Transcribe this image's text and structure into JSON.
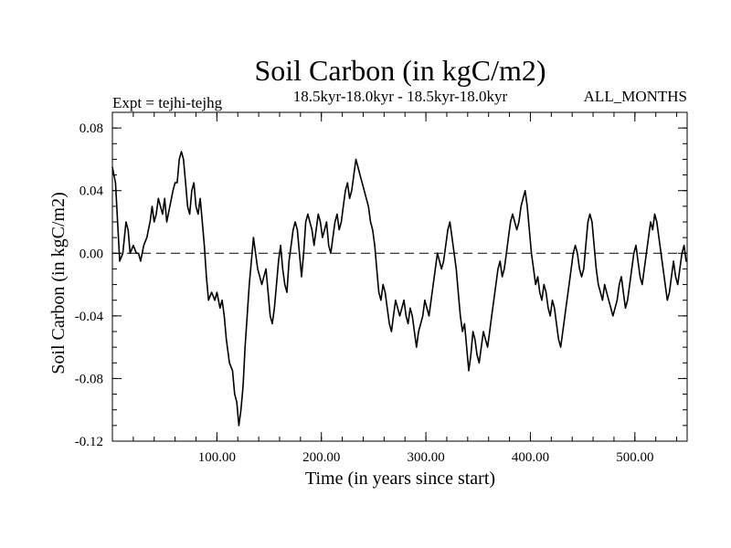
{
  "chart_data": {
    "type": "line",
    "title": "Soil Carbon (in kgC/m2)",
    "subtitle": "18.5kyr-18.0kyr - 18.5kyr-18.0kyr",
    "left_note": "Expt = tejhi-tejhg",
    "right_note": "ALL_MONTHS",
    "xlabel": "Time (in years since start)",
    "ylabel": "Soil Carbon (in kgC/m2)",
    "xlim": [
      0,
      550
    ],
    "ylim": [
      -0.12,
      0.09
    ],
    "xticks": [
      100,
      200,
      300,
      400,
      500
    ],
    "xtick_labels": [
      "100.00",
      "200.00",
      "300.00",
      "400.00",
      "500.00"
    ],
    "yticks": [
      -0.12,
      -0.08,
      -0.04,
      0.0,
      0.04,
      0.08
    ],
    "ytick_labels": [
      "-0.12",
      "-0.08",
      "-0.04",
      "0.00",
      "0.04",
      "0.08"
    ],
    "zero_line": "dashed",
    "series": [
      {
        "color": "#000000",
        "points": [
          [
            0,
            0.055
          ],
          [
            3,
            0.045
          ],
          [
            5,
            0.02
          ],
          [
            7,
            -0.005
          ],
          [
            10,
            0.0
          ],
          [
            13,
            0.02
          ],
          [
            15,
            0.015
          ],
          [
            17,
            0.0
          ],
          [
            20,
            0.005
          ],
          [
            23,
            0.0
          ],
          [
            25,
            0.0
          ],
          [
            27,
            -0.005
          ],
          [
            30,
            0.005
          ],
          [
            33,
            0.01
          ],
          [
            36,
            0.02
          ],
          [
            38,
            0.03
          ],
          [
            40,
            0.02
          ],
          [
            42,
            0.025
          ],
          [
            44,
            0.035
          ],
          [
            46,
            0.03
          ],
          [
            48,
            0.025
          ],
          [
            50,
            0.035
          ],
          [
            52,
            0.02
          ],
          [
            55,
            0.03
          ],
          [
            58,
            0.04
          ],
          [
            60,
            0.045
          ],
          [
            62,
            0.045
          ],
          [
            64,
            0.06
          ],
          [
            66,
            0.065
          ],
          [
            68,
            0.06
          ],
          [
            70,
            0.045
          ],
          [
            72,
            0.03
          ],
          [
            74,
            0.025
          ],
          [
            76,
            0.04
          ],
          [
            78,
            0.045
          ],
          [
            80,
            0.03
          ],
          [
            82,
            0.025
          ],
          [
            84,
            0.035
          ],
          [
            86,
            0.02
          ],
          [
            88,
            0.005
          ],
          [
            90,
            -0.015
          ],
          [
            92,
            -0.03
          ],
          [
            95,
            -0.025
          ],
          [
            98,
            -0.03
          ],
          [
            100,
            -0.025
          ],
          [
            103,
            -0.035
          ],
          [
            105,
            -0.03
          ],
          [
            107,
            -0.04
          ],
          [
            109,
            -0.055
          ],
          [
            112,
            -0.07
          ],
          [
            115,
            -0.075
          ],
          [
            117,
            -0.09
          ],
          [
            119,
            -0.095
          ],
          [
            121,
            -0.11
          ],
          [
            123,
            -0.1
          ],
          [
            125,
            -0.085
          ],
          [
            127,
            -0.06
          ],
          [
            129,
            -0.04
          ],
          [
            131,
            -0.02
          ],
          [
            133,
            -0.005
          ],
          [
            135,
            0.01
          ],
          [
            137,
            0.0
          ],
          [
            139,
            -0.01
          ],
          [
            141,
            -0.015
          ],
          [
            143,
            -0.02
          ],
          [
            145,
            -0.015
          ],
          [
            147,
            -0.01
          ],
          [
            149,
            -0.025
          ],
          [
            151,
            -0.04
          ],
          [
            153,
            -0.045
          ],
          [
            155,
            -0.035
          ],
          [
            157,
            -0.02
          ],
          [
            159,
            -0.005
          ],
          [
            161,
            0.005
          ],
          [
            163,
            -0.01
          ],
          [
            165,
            -0.02
          ],
          [
            167,
            -0.025
          ],
          [
            169,
            -0.005
          ],
          [
            171,
            0.005
          ],
          [
            173,
            0.015
          ],
          [
            175,
            0.02
          ],
          [
            177,
            0.015
          ],
          [
            179,
            0.0
          ],
          [
            181,
            -0.015
          ],
          [
            183,
            0.0
          ],
          [
            185,
            0.02
          ],
          [
            187,
            0.025
          ],
          [
            189,
            0.02
          ],
          [
            191,
            0.015
          ],
          [
            193,
            0.005
          ],
          [
            195,
            0.015
          ],
          [
            197,
            0.025
          ],
          [
            199,
            0.02
          ],
          [
            201,
            0.01
          ],
          [
            203,
            0.015
          ],
          [
            205,
            0.02
          ],
          [
            207,
            0.005
          ],
          [
            209,
            0.0
          ],
          [
            211,
            0.01
          ],
          [
            213,
            0.02
          ],
          [
            215,
            0.025
          ],
          [
            217,
            0.015
          ],
          [
            219,
            0.02
          ],
          [
            221,
            0.03
          ],
          [
            223,
            0.04
          ],
          [
            225,
            0.045
          ],
          [
            227,
            0.035
          ],
          [
            229,
            0.04
          ],
          [
            231,
            0.05
          ],
          [
            233,
            0.06
          ],
          [
            235,
            0.055
          ],
          [
            237,
            0.05
          ],
          [
            239,
            0.045
          ],
          [
            241,
            0.04
          ],
          [
            243,
            0.035
          ],
          [
            245,
            0.03
          ],
          [
            247,
            0.02
          ],
          [
            249,
            0.015
          ],
          [
            251,
            0.005
          ],
          [
            253,
            -0.01
          ],
          [
            255,
            -0.025
          ],
          [
            257,
            -0.03
          ],
          [
            259,
            -0.02
          ],
          [
            261,
            -0.025
          ],
          [
            263,
            -0.035
          ],
          [
            265,
            -0.045
          ],
          [
            267,
            -0.05
          ],
          [
            269,
            -0.04
          ],
          [
            271,
            -0.03
          ],
          [
            273,
            -0.035
          ],
          [
            275,
            -0.04
          ],
          [
            277,
            -0.035
          ],
          [
            279,
            -0.03
          ],
          [
            281,
            -0.04
          ],
          [
            283,
            -0.045
          ],
          [
            285,
            -0.035
          ],
          [
            287,
            -0.04
          ],
          [
            289,
            -0.05
          ],
          [
            291,
            -0.06
          ],
          [
            293,
            -0.05
          ],
          [
            295,
            -0.045
          ],
          [
            297,
            -0.04
          ],
          [
            299,
            -0.03
          ],
          [
            301,
            -0.035
          ],
          [
            303,
            -0.04
          ],
          [
            305,
            -0.03
          ],
          [
            307,
            -0.02
          ],
          [
            309,
            -0.01
          ],
          [
            311,
            0.0
          ],
          [
            313,
            -0.005
          ],
          [
            315,
            -0.01
          ],
          [
            317,
            -0.005
          ],
          [
            319,
            0.005
          ],
          [
            321,
            0.015
          ],
          [
            323,
            0.02
          ],
          [
            325,
            0.01
          ],
          [
            327,
            0.0
          ],
          [
            329,
            -0.01
          ],
          [
            331,
            -0.025
          ],
          [
            333,
            -0.04
          ],
          [
            335,
            -0.05
          ],
          [
            337,
            -0.045
          ],
          [
            339,
            -0.06
          ],
          [
            341,
            -0.075
          ],
          [
            343,
            -0.065
          ],
          [
            345,
            -0.05
          ],
          [
            347,
            -0.055
          ],
          [
            349,
            -0.065
          ],
          [
            351,
            -0.07
          ],
          [
            353,
            -0.06
          ],
          [
            355,
            -0.05
          ],
          [
            357,
            -0.055
          ],
          [
            359,
            -0.06
          ],
          [
            361,
            -0.05
          ],
          [
            363,
            -0.04
          ],
          [
            365,
            -0.03
          ],
          [
            367,
            -0.02
          ],
          [
            369,
            -0.01
          ],
          [
            371,
            -0.005
          ],
          [
            373,
            -0.015
          ],
          [
            375,
            -0.01
          ],
          [
            377,
            0.0
          ],
          [
            379,
            0.01
          ],
          [
            381,
            0.02
          ],
          [
            383,
            0.025
          ],
          [
            385,
            0.02
          ],
          [
            387,
            0.015
          ],
          [
            389,
            0.02
          ],
          [
            391,
            0.03
          ],
          [
            393,
            0.035
          ],
          [
            395,
            0.04
          ],
          [
            397,
            0.03
          ],
          [
            399,
            0.015
          ],
          [
            401,
            0.0
          ],
          [
            403,
            -0.01
          ],
          [
            405,
            -0.02
          ],
          [
            407,
            -0.015
          ],
          [
            409,
            -0.025
          ],
          [
            411,
            -0.03
          ],
          [
            413,
            -0.02
          ],
          [
            415,
            -0.025
          ],
          [
            417,
            -0.035
          ],
          [
            419,
            -0.04
          ],
          [
            421,
            -0.03
          ],
          [
            423,
            -0.035
          ],
          [
            425,
            -0.045
          ],
          [
            427,
            -0.055
          ],
          [
            429,
            -0.06
          ],
          [
            431,
            -0.05
          ],
          [
            433,
            -0.04
          ],
          [
            435,
            -0.03
          ],
          [
            437,
            -0.02
          ],
          [
            439,
            -0.01
          ],
          [
            441,
            0.0
          ],
          [
            443,
            0.005
          ],
          [
            445,
            0.0
          ],
          [
            447,
            -0.01
          ],
          [
            449,
            -0.015
          ],
          [
            451,
            -0.01
          ],
          [
            453,
            0.005
          ],
          [
            455,
            0.02
          ],
          [
            457,
            0.025
          ],
          [
            459,
            0.02
          ],
          [
            461,
            0.005
          ],
          [
            463,
            -0.01
          ],
          [
            465,
            -0.02
          ],
          [
            467,
            -0.025
          ],
          [
            469,
            -0.03
          ],
          [
            471,
            -0.02
          ],
          [
            473,
            -0.025
          ],
          [
            475,
            -0.03
          ],
          [
            477,
            -0.035
          ],
          [
            479,
            -0.04
          ],
          [
            481,
            -0.035
          ],
          [
            483,
            -0.03
          ],
          [
            485,
            -0.02
          ],
          [
            487,
            -0.015
          ],
          [
            489,
            -0.025
          ],
          [
            491,
            -0.035
          ],
          [
            493,
            -0.03
          ],
          [
            495,
            -0.02
          ],
          [
            497,
            -0.01
          ],
          [
            499,
            0.0
          ],
          [
            501,
            0.005
          ],
          [
            503,
            -0.005
          ],
          [
            505,
            -0.015
          ],
          [
            507,
            -0.02
          ],
          [
            509,
            -0.01
          ],
          [
            511,
            0.0
          ],
          [
            513,
            0.01
          ],
          [
            515,
            0.02
          ],
          [
            517,
            0.015
          ],
          [
            519,
            0.025
          ],
          [
            521,
            0.02
          ],
          [
            523,
            0.01
          ],
          [
            525,
            0.0
          ],
          [
            527,
            -0.01
          ],
          [
            529,
            -0.02
          ],
          [
            531,
            -0.03
          ],
          [
            533,
            -0.025
          ],
          [
            535,
            -0.015
          ],
          [
            537,
            -0.005
          ],
          [
            539,
            -0.015
          ],
          [
            541,
            -0.02
          ],
          [
            543,
            -0.01
          ],
          [
            545,
            0.0
          ],
          [
            547,
            0.005
          ],
          [
            549,
            -0.005
          ],
          [
            550,
            -0.005
          ]
        ]
      }
    ]
  }
}
